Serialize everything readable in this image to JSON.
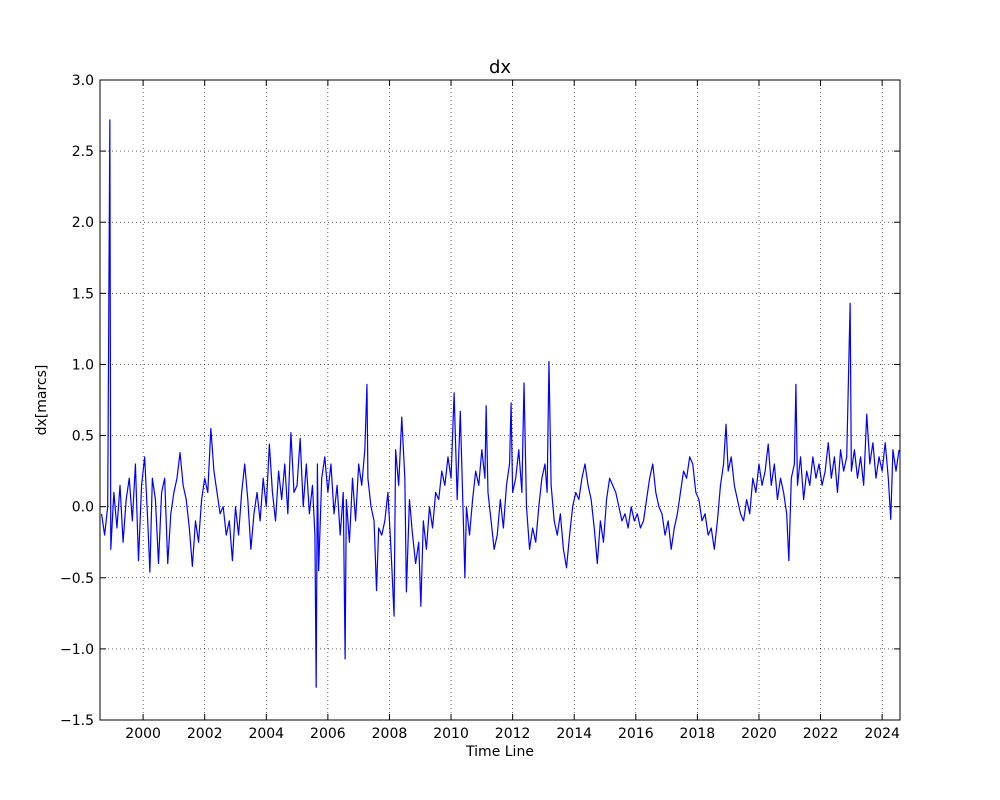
{
  "chart_data": {
    "type": "line",
    "title": "dx",
    "xlabel": "Time Line",
    "ylabel": "dx[marcs]",
    "color": "#0000ff",
    "grid": true,
    "xlim": [
      1998.6,
      2024.58
    ],
    "xticks": [
      2000,
      2002,
      2004,
      2006,
      2008,
      2010,
      2012,
      2014,
      2016,
      2018,
      2020,
      2022,
      2024
    ],
    "ylim": [
      -1.5,
      3.0
    ],
    "yticks": [
      {
        "value": -1.5,
        "label": "−1.5"
      },
      {
        "value": -1.0,
        "label": "−1.0"
      },
      {
        "value": -0.5,
        "label": "−0.5"
      },
      {
        "value": 0,
        "label": "0.0"
      },
      0.5,
      {
        "value": 1.0,
        "label": "1.0"
      },
      1.5,
      {
        "value": 2.0,
        "label": "2.0"
      },
      2.5,
      {
        "value": 3.0,
        "label": "3.0"
      }
    ],
    "x": [
      1998.65,
      1998.75,
      1998.85,
      1998.92,
      1998.95,
      1999.05,
      1999.15,
      1999.25,
      1999.35,
      1999.45,
      1999.55,
      1999.65,
      1999.75,
      1999.85,
      1999.95,
      2000.05,
      2000.15,
      2000.22,
      2000.3,
      2000.4,
      2000.5,
      2000.6,
      2000.7,
      2000.8,
      2000.9,
      2001.0,
      2001.1,
      2001.2,
      2001.3,
      2001.4,
      2001.5,
      2001.6,
      2001.7,
      2001.8,
      2001.9,
      2002.0,
      2002.1,
      2002.2,
      2002.3,
      2002.4,
      2002.5,
      2002.6,
      2002.7,
      2002.8,
      2002.9,
      2003.0,
      2003.1,
      2003.2,
      2003.3,
      2003.4,
      2003.5,
      2003.6,
      2003.7,
      2003.8,
      2003.9,
      2004.0,
      2004.1,
      2004.2,
      2004.3,
      2004.4,
      2004.5,
      2004.6,
      2004.7,
      2004.8,
      2004.9,
      2005.0,
      2005.1,
      2005.2,
      2005.3,
      2005.4,
      2005.5,
      2005.58,
      2005.62,
      2005.66,
      2005.7,
      2005.8,
      2005.9,
      2006.0,
      2006.1,
      2006.2,
      2006.3,
      2006.4,
      2006.5,
      2006.56,
      2006.6,
      2006.7,
      2006.8,
      2006.9,
      2007.0,
      2007.1,
      2007.2,
      2007.27,
      2007.3,
      2007.4,
      2007.5,
      2007.58,
      2007.65,
      2007.75,
      2007.85,
      2007.95,
      2008.05,
      2008.15,
      2008.2,
      2008.3,
      2008.4,
      2008.5,
      2008.55,
      2008.65,
      2008.75,
      2008.85,
      2008.95,
      2009.02,
      2009.1,
      2009.2,
      2009.3,
      2009.4,
      2009.5,
      2009.6,
      2009.7,
      2009.8,
      2009.9,
      2010.0,
      2010.1,
      2010.2,
      2010.3,
      2010.4,
      2010.45,
      2010.5,
      2010.6,
      2010.7,
      2010.8,
      2010.9,
      2011.0,
      2011.1,
      2011.14,
      2011.2,
      2011.3,
      2011.4,
      2011.5,
      2011.6,
      2011.7,
      2011.8,
      2011.9,
      2011.95,
      2012.0,
      2012.1,
      2012.2,
      2012.3,
      2012.37,
      2012.45,
      2012.55,
      2012.65,
      2012.75,
      2012.85,
      2012.95,
      2013.05,
      2013.12,
      2013.18,
      2013.25,
      2013.35,
      2013.45,
      2013.55,
      2013.65,
      2013.75,
      2013.85,
      2013.95,
      2014.05,
      2014.15,
      2014.25,
      2014.35,
      2014.45,
      2014.55,
      2014.65,
      2014.75,
      2014.85,
      2014.95,
      2015.05,
      2015.15,
      2015.25,
      2015.35,
      2015.45,
      2015.55,
      2015.65,
      2015.75,
      2015.85,
      2015.95,
      2016.05,
      2016.15,
      2016.25,
      2016.35,
      2016.45,
      2016.55,
      2016.65,
      2016.75,
      2016.85,
      2016.95,
      2017.05,
      2017.15,
      2017.25,
      2017.35,
      2017.45,
      2017.55,
      2017.65,
      2017.75,
      2017.85,
      2017.95,
      2018.05,
      2018.15,
      2018.25,
      2018.35,
      2018.45,
      2018.55,
      2018.65,
      2018.75,
      2018.85,
      2018.93,
      2019.0,
      2019.1,
      2019.2,
      2019.3,
      2019.4,
      2019.5,
      2019.6,
      2019.7,
      2019.8,
      2019.9,
      2020.0,
      2020.1,
      2020.2,
      2020.3,
      2020.4,
      2020.5,
      2020.6,
      2020.7,
      2020.8,
      2020.9,
      2020.97,
      2021.05,
      2021.15,
      2021.2,
      2021.25,
      2021.35,
      2021.45,
      2021.55,
      2021.65,
      2021.75,
      2021.85,
      2021.95,
      2022.05,
      2022.15,
      2022.25,
      2022.35,
      2022.45,
      2022.55,
      2022.65,
      2022.75,
      2022.85,
      2022.96,
      2023.0,
      2023.1,
      2023.2,
      2023.3,
      2023.4,
      2023.5,
      2023.6,
      2023.7,
      2023.8,
      2023.9,
      2024.0,
      2024.1,
      2024.2,
      2024.28,
      2024.35,
      2024.45,
      2024.55
    ],
    "values": [
      -0.05,
      -0.2,
      0.0,
      2.72,
      -0.3,
      0.1,
      -0.15,
      0.15,
      -0.25,
      0.05,
      0.2,
      -0.1,
      0.3,
      -0.38,
      0.15,
      0.35,
      -0.1,
      -0.46,
      0.2,
      0.05,
      -0.4,
      0.1,
      0.2,
      -0.4,
      -0.05,
      0.1,
      0.2,
      0.38,
      0.15,
      0.05,
      -0.15,
      -0.42,
      -0.1,
      -0.25,
      0.05,
      0.2,
      0.1,
      0.55,
      0.25,
      0.1,
      -0.05,
      0.0,
      -0.2,
      -0.1,
      -0.38,
      0.0,
      -0.2,
      0.1,
      0.3,
      0.05,
      -0.3,
      -0.05,
      0.1,
      -0.1,
      0.2,
      0.0,
      0.44,
      0.1,
      -0.1,
      0.25,
      0.05,
      0.3,
      -0.05,
      0.52,
      0.1,
      0.15,
      0.48,
      0.0,
      0.3,
      -0.05,
      0.15,
      -0.2,
      -1.27,
      0.3,
      -0.45,
      0.2,
      0.35,
      0.1,
      0.3,
      -0.05,
      0.15,
      -0.2,
      0.1,
      -1.07,
      0.05,
      -0.25,
      0.2,
      -0.1,
      0.3,
      0.15,
      0.4,
      0.86,
      0.2,
      0.0,
      -0.1,
      -0.59,
      -0.15,
      -0.2,
      -0.1,
      0.1,
      -0.3,
      -0.77,
      0.4,
      0.15,
      0.63,
      0.2,
      -0.6,
      0.05,
      -0.2,
      -0.4,
      -0.25,
      -0.7,
      -0.1,
      -0.3,
      0.0,
      -0.15,
      0.1,
      0.05,
      0.25,
      0.15,
      0.35,
      0.2,
      0.8,
      0.05,
      0.67,
      -0.1,
      -0.5,
      0.0,
      -0.2,
      0.05,
      0.25,
      0.15,
      0.4,
      0.2,
      0.71,
      0.1,
      -0.1,
      -0.3,
      -0.2,
      0.05,
      -0.15,
      0.15,
      0.3,
      0.73,
      0.1,
      0.2,
      0.4,
      0.1,
      0.87,
      0.0,
      -0.3,
      -0.15,
      -0.25,
      0.0,
      0.2,
      0.3,
      0.1,
      1.02,
      0.15,
      -0.1,
      -0.2,
      -0.05,
      -0.3,
      -0.43,
      -0.2,
      0.0,
      0.1,
      0.05,
      0.2,
      0.3,
      0.15,
      0.05,
      -0.15,
      -0.4,
      -0.1,
      -0.25,
      0.05,
      0.2,
      0.15,
      0.1,
      0.0,
      -0.1,
      -0.05,
      -0.15,
      0.0,
      -0.1,
      -0.05,
      -0.15,
      -0.1,
      0.05,
      0.2,
      0.3,
      0.1,
      0.0,
      -0.05,
      -0.2,
      -0.1,
      -0.3,
      -0.15,
      -0.05,
      0.1,
      0.25,
      0.2,
      0.35,
      0.3,
      0.1,
      0.05,
      -0.1,
      -0.05,
      -0.2,
      -0.15,
      -0.3,
      -0.1,
      0.15,
      0.3,
      0.58,
      0.25,
      0.35,
      0.15,
      0.05,
      -0.05,
      -0.1,
      0.05,
      -0.05,
      0.2,
      0.1,
      0.3,
      0.15,
      0.25,
      0.44,
      0.15,
      0.3,
      0.05,
      0.2,
      0.1,
      -0.05,
      -0.38,
      0.2,
      0.3,
      0.86,
      0.15,
      0.35,
      0.05,
      0.25,
      0.15,
      0.35,
      0.2,
      0.3,
      0.15,
      0.25,
      0.45,
      0.2,
      0.35,
      0.1,
      0.4,
      0.25,
      0.35,
      1.43,
      0.25,
      0.4,
      0.2,
      0.35,
      0.15,
      0.65,
      0.3,
      0.45,
      0.2,
      0.35,
      0.25,
      0.45,
      0.2,
      -0.09,
      0.4,
      0.25,
      0.4
    ]
  }
}
